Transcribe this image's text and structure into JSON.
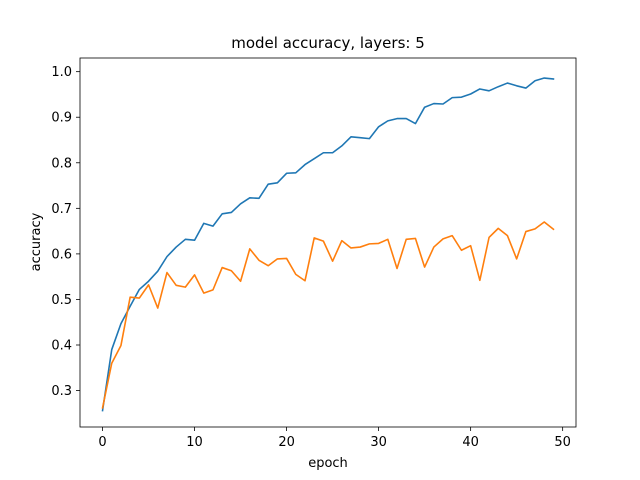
{
  "chart_data": {
    "type": "line",
    "title": "model accuracy, layers: 5",
    "xlabel": "epoch",
    "ylabel": "accuracy",
    "xlim": [
      -2.45,
      51.45
    ],
    "ylim": [
      0.22,
      1.03
    ],
    "xticks": [
      0,
      10,
      20,
      30,
      40,
      50
    ],
    "xtick_labels": [
      "0",
      "10",
      "20",
      "30",
      "40",
      "50"
    ],
    "yticks": [
      0.3,
      0.4,
      0.5,
      0.6,
      0.7,
      0.8,
      0.9,
      1.0
    ],
    "ytick_labels": [
      "0.3",
      "0.4",
      "0.5",
      "0.6",
      "0.7",
      "0.8",
      "0.9",
      "1.0"
    ],
    "grid": false,
    "legend": "none",
    "x": [
      0,
      1,
      2,
      3,
      4,
      5,
      6,
      7,
      8,
      9,
      10,
      11,
      12,
      13,
      14,
      15,
      16,
      17,
      18,
      19,
      20,
      21,
      22,
      23,
      24,
      25,
      26,
      27,
      28,
      29,
      30,
      31,
      32,
      33,
      34,
      35,
      36,
      37,
      38,
      39,
      40,
      41,
      42,
      43,
      44,
      45,
      46,
      47,
      48,
      49
    ],
    "series": [
      {
        "color": "#1f77b4",
        "values": [
          0.256,
          0.39,
          0.447,
          0.485,
          0.522,
          0.54,
          0.562,
          0.594,
          0.615,
          0.632,
          0.63,
          0.667,
          0.661,
          0.688,
          0.691,
          0.71,
          0.723,
          0.722,
          0.753,
          0.756,
          0.777,
          0.778,
          0.796,
          0.809,
          0.822,
          0.822,
          0.837,
          0.857,
          0.855,
          0.853,
          0.879,
          0.892,
          0.897,
          0.897,
          0.886,
          0.922,
          0.93,
          0.929,
          0.943,
          0.944,
          0.951,
          0.962,
          0.958,
          0.967,
          0.975,
          0.969,
          0.964,
          0.98,
          0.986,
          0.984
        ]
      },
      {
        "color": "#ff7f0e",
        "values": [
          0.262,
          0.36,
          0.399,
          0.505,
          0.503,
          0.532,
          0.481,
          0.559,
          0.531,
          0.527,
          0.554,
          0.514,
          0.521,
          0.57,
          0.563,
          0.54,
          0.611,
          0.586,
          0.574,
          0.589,
          0.59,
          0.555,
          0.541,
          0.635,
          0.628,
          0.584,
          0.629,
          0.613,
          0.615,
          0.622,
          0.623,
          0.632,
          0.568,
          0.632,
          0.634,
          0.571,
          0.615,
          0.633,
          0.64,
          0.608,
          0.618,
          0.542,
          0.636,
          0.656,
          0.64,
          0.589,
          0.649,
          0.655,
          0.67,
          0.654
        ]
      }
    ]
  }
}
